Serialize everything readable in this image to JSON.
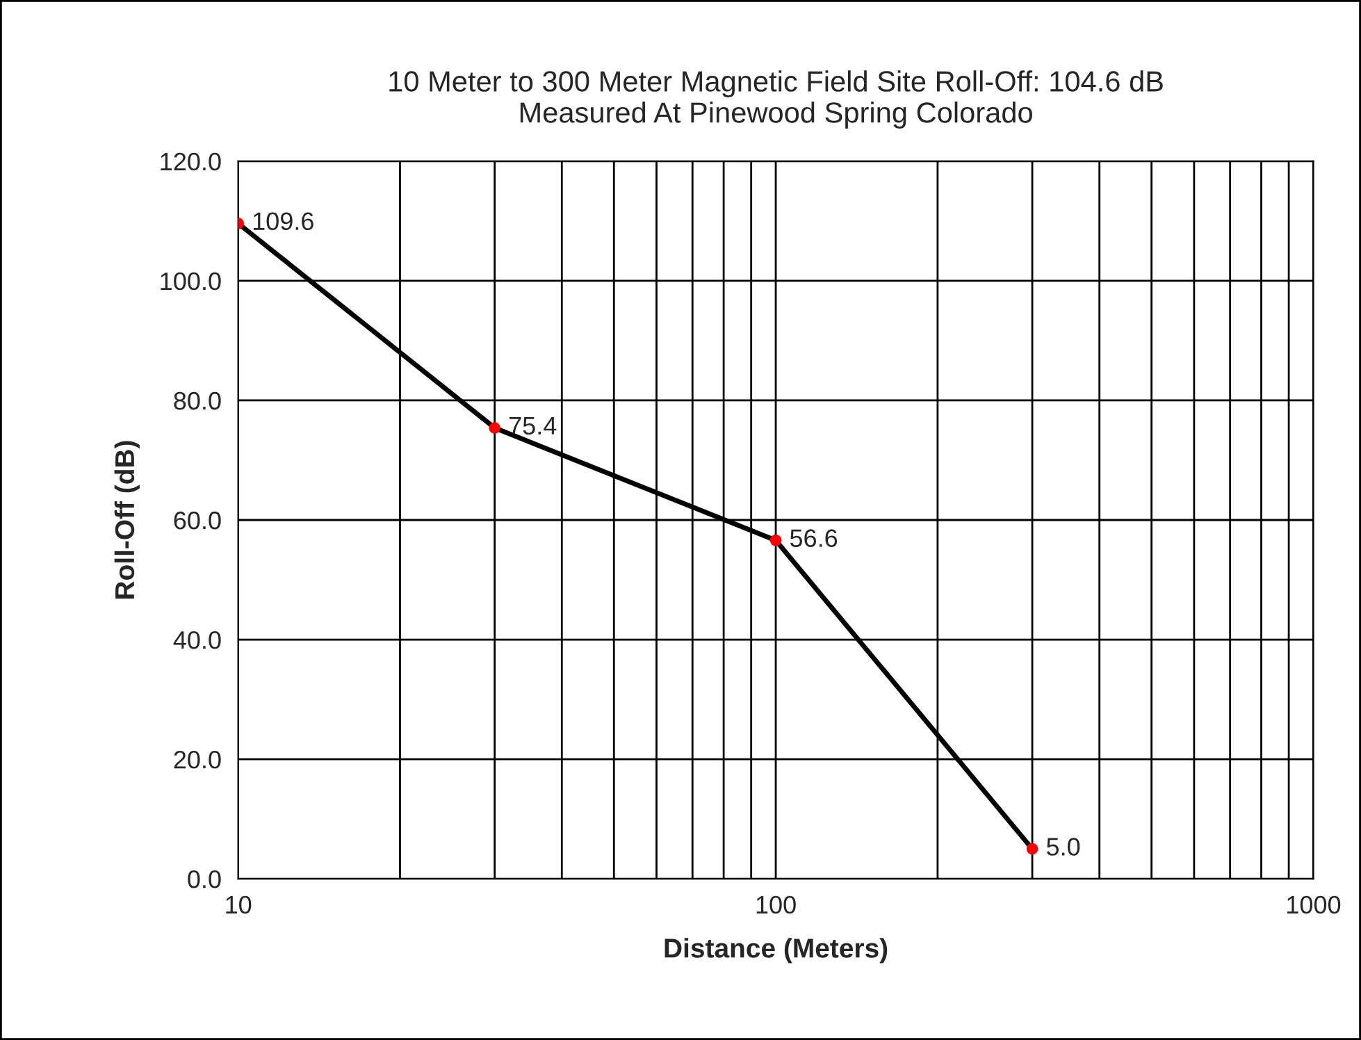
{
  "chart_data": {
    "type": "line",
    "title": "10 Meter to 300 Meter Magnetic Field Site Roll-Off: 104.6 dB\nMeasured At Pinewood Spring Colorado",
    "xlabel": "Distance (Meters)",
    "ylabel": "Roll-Off (dB)",
    "x": [
      10,
      30,
      100,
      300
    ],
    "series": [
      {
        "color": "#000000",
        "colors": [
          "#ff0000",
          "#ff0000",
          "#ff0000",
          "#ff0000"
        ],
        "values": [
          109.6,
          75.4,
          56.6,
          5.0
        ],
        "value_labels": [
          "109.6",
          "75.4",
          "56.6",
          "5.0"
        ]
      }
    ],
    "log": "x",
    "xlim": [
      10,
      1000
    ],
    "xticks": [
      10,
      100,
      1000
    ],
    "ylim": [
      0,
      120
    ],
    "yticks": [
      {
        "value": 0,
        "label": "0.0"
      },
      {
        "value": 20,
        "label": "20.0"
      },
      {
        "value": 40,
        "label": "40.0"
      },
      {
        "value": 60,
        "label": "60.0"
      },
      {
        "value": 80,
        "label": "80.0"
      },
      {
        "value": 100,
        "label": "100.0"
      },
      {
        "value": 120,
        "label": "120.0"
      }
    ],
    "grid": true,
    "marker": "circle",
    "line_style": "solid",
    "legend": false
  }
}
